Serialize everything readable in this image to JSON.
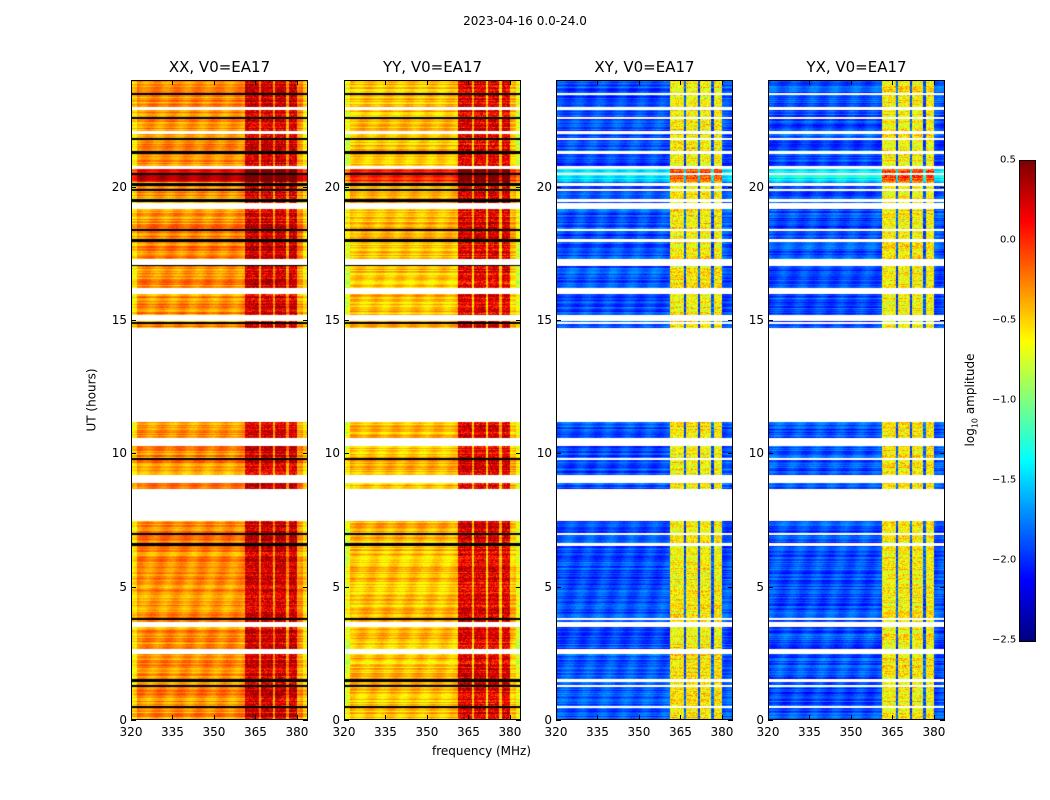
{
  "chart_data": {
    "type": "heatmap",
    "title": "2023-04-16 0.0-24.0",
    "xlabel": "frequency (MHz)",
    "ylabel": "UT (hours)",
    "xlim": [
      320,
      384
    ],
    "ylim": [
      0,
      24
    ],
    "xticks": [
      "320",
      "335",
      "350",
      "365",
      "380"
    ],
    "xtick_values": [
      320,
      335,
      350,
      365,
      380
    ],
    "yticks": [
      "0",
      "5",
      "10",
      "15",
      "20"
    ],
    "ytick_values": [
      0,
      5,
      10,
      15,
      20
    ],
    "panels": [
      {
        "title": "XX, V0=EA17",
        "baseline_log10_amp": -0.3,
        "rfi_log10_amp": 0.25
      },
      {
        "title": "YY, V0=EA17",
        "baseline_log10_amp": -0.45,
        "rfi_log10_amp": 0.2
      },
      {
        "title": "XY, V0=EA17",
        "baseline_log10_amp": -1.9,
        "rfi_log10_amp": -0.6
      },
      {
        "title": "YX, V0=EA17",
        "baseline_log10_amp": -1.9,
        "rfi_log10_amp": -0.6
      }
    ],
    "rfi_bands_mhz": [
      [
        361,
        366
      ],
      [
        367,
        371
      ],
      [
        372,
        376
      ],
      [
        377,
        380
      ]
    ],
    "flagged_hours": [
      [
        2.5,
        2.7
      ],
      [
        3.5,
        3.7
      ],
      [
        7.5,
        8.7
      ],
      [
        8.9,
        9.2
      ],
      [
        10.3,
        10.6
      ],
      [
        11.2,
        14.7
      ],
      [
        15.0,
        15.2
      ],
      [
        16.0,
        16.2
      ],
      [
        17.1,
        17.3
      ],
      [
        19.2,
        19.4
      ],
      [
        20.7,
        20.8
      ],
      [
        22.0,
        22.1
      ],
      [
        22.9,
        23.0
      ]
    ],
    "dark_rows_hours": [
      0.5,
      1.3,
      1.5,
      3.8,
      6.6,
      7.0,
      9.8,
      14.9,
      17.1,
      18.0,
      18.4,
      19.5,
      19.9,
      20.1,
      20.5,
      21.3,
      21.8,
      22.6,
      23.5
    ],
    "colorbar": {
      "label": "log10 amplitude",
      "label_base": "log",
      "label_sub": "10",
      "label_rest": " amplitude",
      "range": [
        -2.5,
        0.5
      ],
      "ticks": [
        "0.5",
        "0.0",
        "−0.5",
        "−1.0",
        "−1.5",
        "−2.0",
        "−2.5"
      ],
      "tick_values": [
        0.5,
        0.0,
        -0.5,
        -1.0,
        -1.5,
        -2.0,
        -2.5
      ],
      "colormap": "jet"
    }
  }
}
